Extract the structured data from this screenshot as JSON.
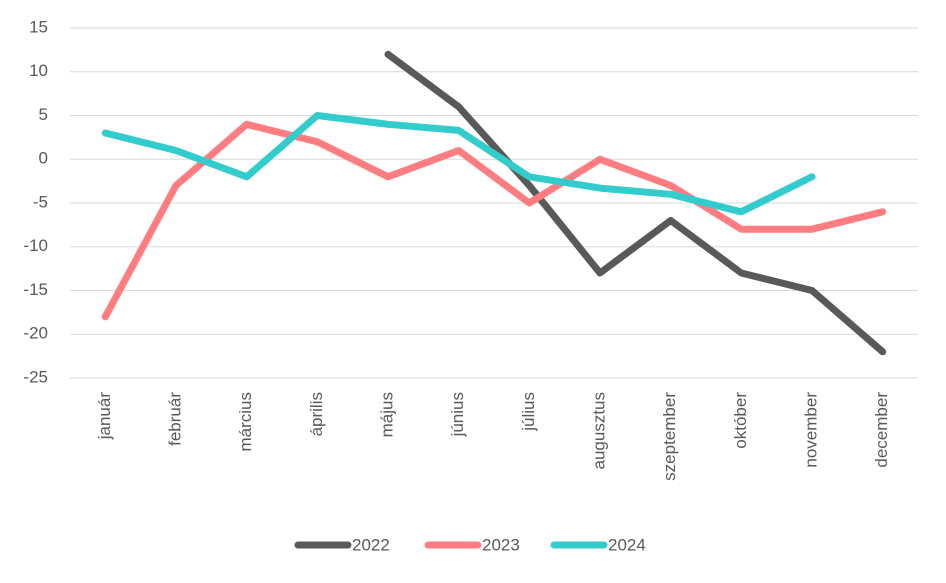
{
  "chart_data": {
    "type": "line",
    "title": "",
    "xlabel": "",
    "ylabel": "",
    "ylim": [
      -25,
      15
    ],
    "yticks": [
      15,
      10,
      5,
      0,
      -5,
      -10,
      -15,
      -20,
      -25
    ],
    "grid": true,
    "legend": "bottom",
    "categories": [
      "január",
      "február",
      "március",
      "április",
      "május",
      "június",
      "július",
      "augusztus",
      "szeptember",
      "október",
      "november",
      "december"
    ],
    "series": [
      {
        "name": "2022",
        "color": "#595959",
        "values": [
          null,
          null,
          null,
          null,
          12,
          6,
          -3,
          -13,
          -7,
          -13,
          -15,
          -22
        ]
      },
      {
        "name": "2023",
        "color": "#ff7c80",
        "values": [
          -18,
          -3,
          4,
          2,
          -2,
          1,
          -5,
          0,
          -3,
          -8,
          -8,
          -6
        ]
      },
      {
        "name": "2024",
        "color": "#33cccc",
        "values": [
          3,
          1,
          -2,
          5,
          4,
          3.3,
          -2,
          -3.3,
          -4,
          -6,
          -2,
          null
        ]
      }
    ]
  }
}
